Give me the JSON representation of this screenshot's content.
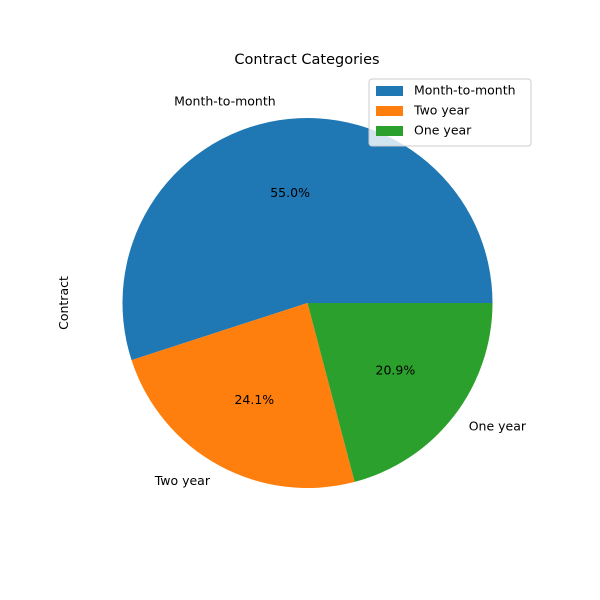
{
  "chart_data": {
    "type": "pie",
    "title": "Contract Categories",
    "ylabel": "Contract",
    "labels": [
      "Month-to-month",
      "Two year",
      "One year"
    ],
    "values": [
      55.0,
      24.1,
      20.9
    ],
    "pct_labels": [
      "55.0%",
      "24.1%",
      "20.9%"
    ],
    "colors": [
      "#1f77b4",
      "#ff7f0e",
      "#2ca02c"
    ],
    "start_angle": "east, counter-clockwise",
    "legend": {
      "placement": "top-right",
      "entries": [
        "Month-to-month",
        "Two year",
        "One year"
      ]
    }
  }
}
